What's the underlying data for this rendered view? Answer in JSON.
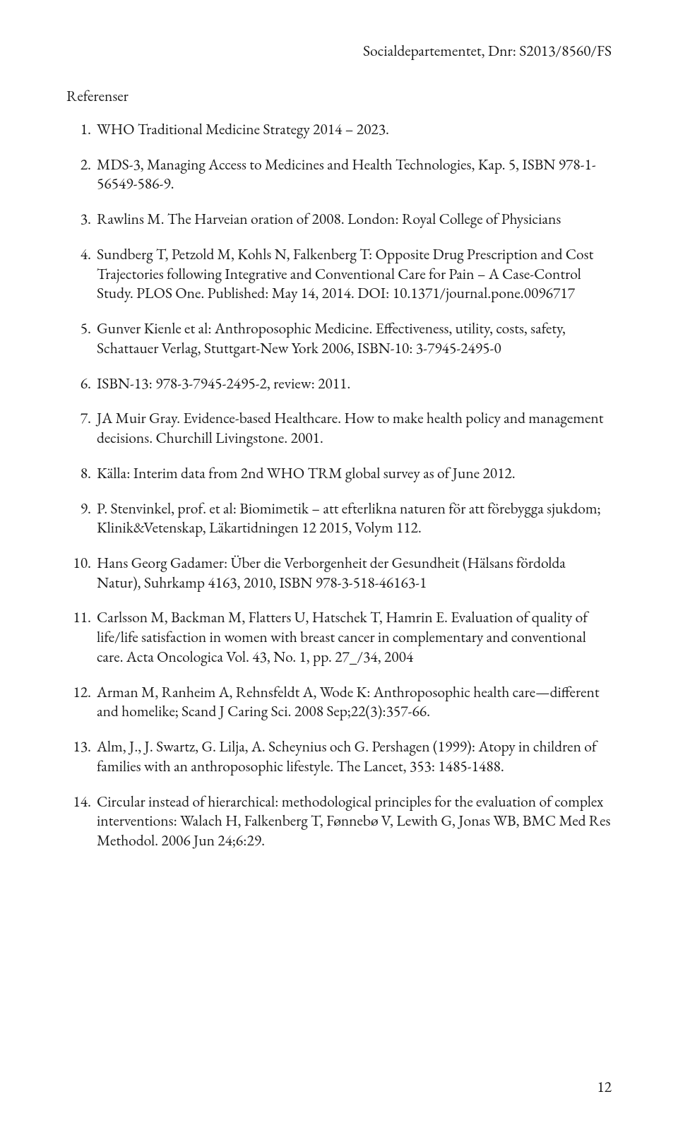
{
  "header": {
    "right": "Socialdepartementet, Dnr: S2013/8560/FS"
  },
  "section_title": "Referenser",
  "references": [
    {
      "n": "1.",
      "text": "WHO Traditional Medicine Strategy 2014 – 2023."
    },
    {
      "n": "2.",
      "text": "MDS-3, Managing Access to Medicines and Health Technologies, Kap. 5, ISBN 978-1-56549-586-9."
    },
    {
      "n": "3.",
      "text": "Rawlins M. The Harveian oration of 2008. London: Royal College of Physicians"
    },
    {
      "n": "4.",
      "text": "Sundberg T, Petzold M, Kohls N, Falkenberg T: Opposite Drug Prescription and Cost Trajectories following Integrative and Conventional Care for Pain – A Case-Control Study. PLOS One. Published: May 14, 2014. DOI: 10.1371/journal.pone.0096717"
    },
    {
      "n": "5.",
      "text": "Gunver Kienle et al: Anthroposophic Medicine. Effectiveness, utility, costs, safety, Schattauer Verlag, Stuttgart-New York 2006, ISBN-10: 3-7945-2495-0"
    },
    {
      "n": "6.",
      "text": "ISBN-13: 978-3-7945-2495-2, review: 2011."
    },
    {
      "n": "7.",
      "text": "JA Muir Gray. Evidence-based Healthcare. How to make health policy and management decisions. Churchill Livingstone. 2001."
    },
    {
      "n": "8.",
      "text": "Källa: Interim data from 2nd WHO TRM global survey as of June 2012."
    },
    {
      "n": "9.",
      "text": "P. Stenvinkel, prof. et al: Biomimetik – att efterlikna naturen för att förebygga sjukdom; Klinik&Vetenskap, Läkartidningen 12 2015, Volym 112."
    },
    {
      "n": "10.",
      "text": "Hans Georg Gadamer: Über die Verborgenheit der Gesundheit (Hälsans fördolda Natur), Suhrkamp 4163, 2010, ISBN 978-3-518-46163-1"
    },
    {
      "n": "11.",
      "text": "Carlsson M, Backman M, Flatters U, Hatschek T, Hamrin E. Evaluation of quality of life/life satisfaction in women with breast cancer in complementary and conventional care. Acta Oncologica Vol. 43, No. 1, pp. 27_/34, 2004"
    },
    {
      "n": "12.",
      "text": "Arman M, Ranheim A, Rehnsfeldt A, Wode K: Anthroposophic health care—different and homelike; Scand J Caring Sci. 2008 Sep;22(3):357-66."
    },
    {
      "n": "13.",
      "text": "Alm, J., J. Swartz, G. Lilja, A. Scheynius och G. Pershagen (1999): Atopy in children of families with an anthroposophic lifestyle. The Lancet, 353: 1485-1488."
    },
    {
      "n": "14.",
      "text": "Circular instead of hierarchical: methodological principles for the evaluation of complex interventions:  Walach H, Falkenberg T, Fønnebø V, Lewith G, Jonas WB, BMC Med Res Methodol. 2006 Jun 24;6:29."
    }
  ],
  "page_number": "12"
}
